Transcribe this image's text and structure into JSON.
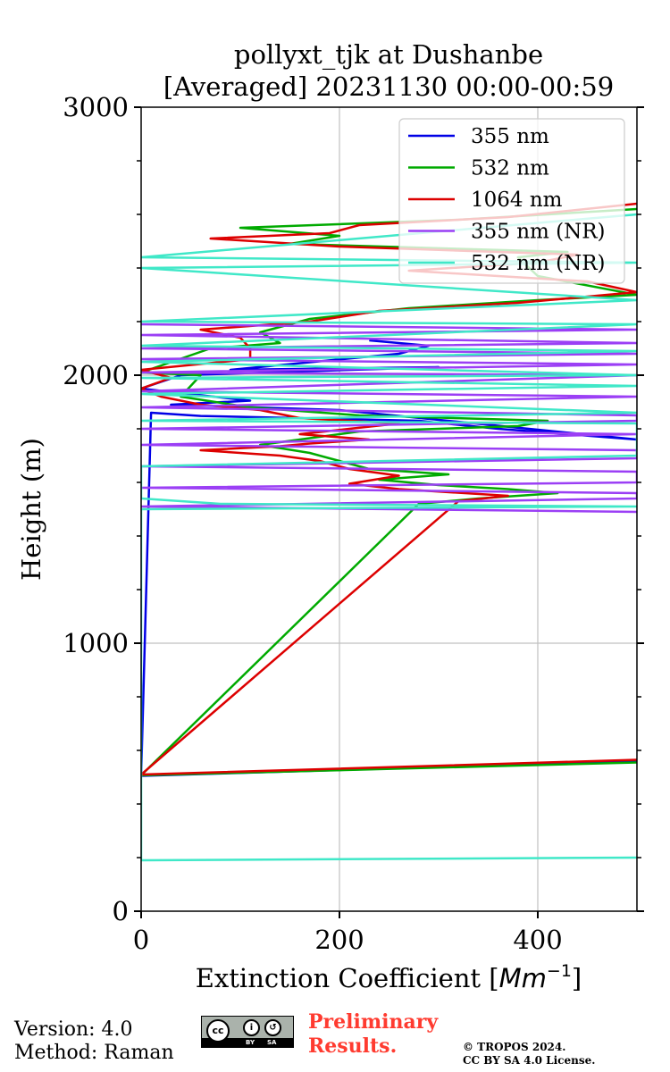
{
  "chart_data": {
    "type": "line",
    "title": "pollyxt_tjk at Dushanbe",
    "subtitle": "[Averaged] 20231130 00:00-00:59",
    "xlabel": "Extinction Coefficient [",
    "xlabel_unit": "Mm",
    "xlabel_exp": "−1",
    "xlabel_close": "]",
    "ylabel": "Height (m)",
    "xlim": [
      0,
      500
    ],
    "ylim": [
      0,
      3000
    ],
    "xticks": [
      0,
      200,
      400
    ],
    "yticks": [
      0,
      1000,
      2000,
      3000
    ],
    "grid": true,
    "legend_position": "top-right",
    "series": [
      {
        "name": "355 nm",
        "color": "#0000e6",
        "points": [
          [
            500,
            560
          ],
          [
            0,
            505
          ],
          [
            10,
            1860
          ],
          [
            60,
            1848
          ],
          [
            280,
            1830
          ],
          [
            360,
            1800
          ],
          [
            500,
            1760
          ],
          [
            200,
            1870
          ],
          [
            30,
            1890
          ],
          [
            110,
            1905
          ],
          [
            0,
            1950
          ],
          [
            40,
            2000
          ],
          [
            300,
            2030
          ],
          [
            90,
            2020
          ],
          [
            260,
            2080
          ],
          [
            290,
            2110
          ],
          [
            230,
            2130
          ]
        ]
      },
      {
        "name": "532 nm",
        "color": "#00aa00",
        "points": [
          [
            500,
            555
          ],
          [
            0,
            507
          ],
          [
            280,
            1520
          ],
          [
            340,
            1540
          ],
          [
            420,
            1560
          ],
          [
            370,
            1575
          ],
          [
            300,
            1590
          ],
          [
            240,
            1610
          ],
          [
            310,
            1630
          ],
          [
            230,
            1650
          ],
          [
            200,
            1680
          ],
          [
            170,
            1710
          ],
          [
            120,
            1740
          ],
          [
            180,
            1770
          ],
          [
            220,
            1790
          ],
          [
            380,
            1810
          ],
          [
            410,
            1830
          ],
          [
            220,
            1850
          ],
          [
            110,
            1880
          ],
          [
            40,
            1920
          ],
          [
            60,
            2000
          ],
          [
            0,
            2010
          ],
          [
            70,
            2100
          ],
          [
            140,
            2120
          ],
          [
            120,
            2160
          ],
          [
            170,
            2210
          ],
          [
            270,
            2250
          ],
          [
            400,
            2280
          ],
          [
            500,
            2300
          ],
          [
            400,
            2370
          ],
          [
            380,
            2440
          ],
          [
            430,
            2460
          ],
          [
            150,
            2490
          ],
          [
            200,
            2520
          ],
          [
            100,
            2550
          ],
          [
            320,
            2580
          ],
          [
            500,
            2620
          ]
        ]
      },
      {
        "name": "1064 nm",
        "color": "#dd0000",
        "points": [
          [
            500,
            565
          ],
          [
            0,
            510
          ],
          [
            320,
            1530
          ],
          [
            370,
            1550
          ],
          [
            260,
            1575
          ],
          [
            210,
            1595
          ],
          [
            260,
            1625
          ],
          [
            210,
            1650
          ],
          [
            180,
            1680
          ],
          [
            140,
            1700
          ],
          [
            60,
            1720
          ],
          [
            140,
            1735
          ],
          [
            170,
            1745
          ],
          [
            230,
            1760
          ],
          [
            160,
            1780
          ],
          [
            210,
            1800
          ],
          [
            260,
            1820
          ],
          [
            160,
            1840
          ],
          [
            120,
            1870
          ],
          [
            60,
            1890
          ],
          [
            20,
            1920
          ],
          [
            0,
            1950
          ],
          [
            30,
            1990
          ],
          [
            0,
            2020
          ],
          [
            110,
            2060
          ],
          [
            110,
            2100
          ],
          [
            100,
            2140
          ],
          [
            60,
            2170
          ],
          [
            170,
            2200
          ],
          [
            240,
            2240
          ],
          [
            380,
            2270
          ],
          [
            500,
            2310
          ],
          [
            450,
            2350
          ],
          [
            270,
            2390
          ],
          [
            400,
            2420
          ],
          [
            440,
            2450
          ],
          [
            200,
            2480
          ],
          [
            70,
            2510
          ],
          [
            190,
            2530
          ],
          [
            220,
            2560
          ],
          [
            370,
            2590
          ],
          [
            500,
            2640
          ]
        ]
      },
      {
        "name": "355 nm (NR)",
        "color": "#9b3ff5",
        "points": [
          [
            500,
            1490
          ],
          [
            0,
            1510
          ],
          [
            500,
            1540
          ],
          [
            500,
            1560
          ],
          [
            0,
            1580
          ],
          [
            500,
            1600
          ],
          [
            500,
            1640
          ],
          [
            0,
            1660
          ],
          [
            500,
            1690
          ],
          [
            500,
            1720
          ],
          [
            0,
            1740
          ],
          [
            500,
            1780
          ],
          [
            0,
            1800
          ],
          [
            500,
            1830
          ],
          [
            500,
            1850
          ],
          [
            0,
            1880
          ],
          [
            500,
            1920
          ],
          [
            0,
            1940
          ],
          [
            500,
            2000
          ],
          [
            0,
            2010
          ],
          [
            500,
            2040
          ],
          [
            0,
            2060
          ],
          [
            500,
            2080
          ],
          [
            0,
            2100
          ],
          [
            500,
            2120
          ],
          [
            0,
            2150
          ],
          [
            500,
            2170
          ],
          [
            0,
            2190
          ]
        ]
      },
      {
        "name": "532 nm (NR)",
        "color": "#40e8c8",
        "points": [
          [
            500,
            200
          ],
          [
            0,
            190
          ],
          [
            0,
            1500
          ],
          [
            500,
            1510
          ],
          [
            80,
            1520
          ],
          [
            0,
            1540
          ],
          [
            0,
            1660
          ],
          [
            500,
            1700
          ],
          [
            500,
            1820
          ],
          [
            0,
            1830
          ],
          [
            500,
            1860
          ],
          [
            0,
            1930
          ],
          [
            500,
            1960
          ],
          [
            0,
            1990
          ],
          [
            500,
            2000
          ],
          [
            0,
            2050
          ],
          [
            500,
            2090
          ],
          [
            0,
            2110
          ],
          [
            500,
            2190
          ],
          [
            0,
            2200
          ],
          [
            500,
            2280
          ],
          [
            0,
            2400
          ],
          [
            500,
            2420
          ],
          [
            0,
            2440
          ],
          [
            500,
            2600
          ]
        ]
      }
    ]
  },
  "footer": {
    "version": "Version: 4.0",
    "method": "Method: Raman",
    "preliminary_1": "Preliminary",
    "preliminary_2": "Results.",
    "copyright_1": "© TROPOS 2024.",
    "copyright_2": "CC BY SA 4.0 License.",
    "license_badge": "cc-by-sa-icon"
  }
}
